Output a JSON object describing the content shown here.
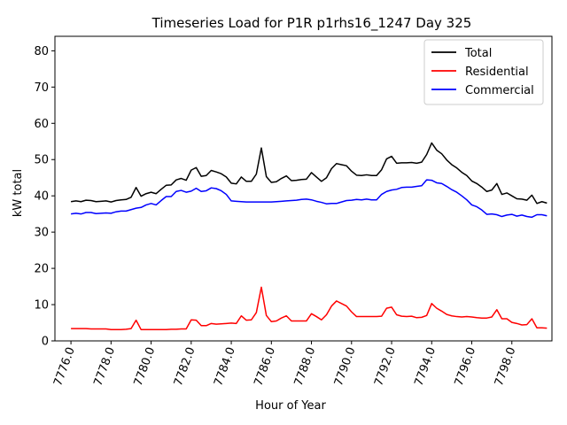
{
  "chart_data": {
    "type": "line",
    "title": "Timeseries Load for P1R p1rhs16_1247  Day 325",
    "xlabel": "Hour of Year",
    "ylabel": "kW total",
    "xlim": [
      7775.2,
      7800.0
    ],
    "ylim": [
      0,
      84
    ],
    "x_ticks": [
      7776.0,
      7778.0,
      7780.0,
      7782.0,
      7784.0,
      7786.0,
      7788.0,
      7790.0,
      7792.0,
      7794.0,
      7796.0,
      7798.0
    ],
    "x_tick_labels": [
      "7776.0",
      "7778.0",
      "7780.0",
      "7782.0",
      "7784.0",
      "7786.0",
      "7788.0",
      "7790.0",
      "7792.0",
      "7794.0",
      "7796.0",
      "7798.0"
    ],
    "y_ticks": [
      0,
      10,
      20,
      30,
      40,
      50,
      60,
      70,
      80
    ],
    "y_tick_labels": [
      "0",
      "10",
      "20",
      "30",
      "40",
      "50",
      "60",
      "70",
      "80"
    ],
    "legend_position": "top-right",
    "grid": false,
    "x_start": 7776.0,
    "x_step": 0.25,
    "series": [
      {
        "name": "Total",
        "color": "#000000",
        "values": [
          38.4,
          38.6,
          38.4,
          38.8,
          38.7,
          38.4,
          38.5,
          38.6,
          38.3,
          38.7,
          38.9,
          39.0,
          39.6,
          42.3,
          39.9,
          40.6,
          41.0,
          40.6,
          41.8,
          42.9,
          43.0,
          44.4,
          44.8,
          44.3,
          47.1,
          47.8,
          45.4,
          45.6,
          47.0,
          46.6,
          46.1,
          45.2,
          43.5,
          43.3,
          45.2,
          44.0,
          44.0,
          46.0,
          53.2,
          45.3,
          43.7,
          43.9,
          44.8,
          45.5,
          44.2,
          44.3,
          44.5,
          44.6,
          46.4,
          45.2,
          44.0,
          45.0,
          47.5,
          48.9,
          48.6,
          48.3,
          46.8,
          45.7,
          45.6,
          45.8,
          45.6,
          45.6,
          47.2,
          50.2,
          50.9,
          49.0,
          49.1,
          49.1,
          49.2,
          49.0,
          49.3,
          51.4,
          54.6,
          52.6,
          51.6,
          49.9,
          48.6,
          47.7,
          46.5,
          45.6,
          44.1,
          43.4,
          42.4,
          41.2,
          41.6,
          43.4,
          40.4,
          40.8,
          40.0,
          39.2,
          39.1,
          38.8,
          40.2,
          37.9,
          38.4,
          38.0
        ]
      },
      {
        "name": "Residential",
        "color": "#ff0000",
        "values": [
          3.4,
          3.4,
          3.4,
          3.4,
          3.3,
          3.3,
          3.3,
          3.3,
          3.1,
          3.1,
          3.1,
          3.2,
          3.4,
          5.7,
          3.1,
          3.1,
          3.1,
          3.1,
          3.1,
          3.1,
          3.2,
          3.2,
          3.3,
          3.3,
          5.8,
          5.7,
          4.2,
          4.2,
          4.8,
          4.6,
          4.7,
          4.8,
          4.9,
          4.8,
          6.9,
          5.7,
          5.8,
          7.8,
          14.8,
          7.0,
          5.3,
          5.5,
          6.3,
          6.9,
          5.5,
          5.5,
          5.5,
          5.5,
          7.5,
          6.7,
          5.8,
          7.2,
          9.6,
          11.0,
          10.3,
          9.6,
          8.0,
          6.7,
          6.7,
          6.7,
          6.7,
          6.7,
          6.8,
          9.0,
          9.3,
          7.2,
          6.8,
          6.7,
          6.8,
          6.4,
          6.5,
          7.0,
          10.3,
          9.0,
          8.2,
          7.3,
          6.9,
          6.7,
          6.6,
          6.7,
          6.6,
          6.4,
          6.3,
          6.3,
          6.6,
          8.6,
          6.1,
          6.1,
          5.1,
          4.8,
          4.4,
          4.5,
          6.1,
          3.6,
          3.6,
          3.5
        ]
      },
      {
        "name": "Commercial",
        "color": "#0000ff",
        "values": [
          35.0,
          35.2,
          35.0,
          35.4,
          35.4,
          35.1,
          35.2,
          35.3,
          35.2,
          35.6,
          35.8,
          35.8,
          36.2,
          36.6,
          36.8,
          37.5,
          37.9,
          37.5,
          38.7,
          39.8,
          39.8,
          41.2,
          41.5,
          41.0,
          41.3,
          42.1,
          41.2,
          41.4,
          42.2,
          42.0,
          41.4,
          40.4,
          38.6,
          38.5,
          38.4,
          38.3,
          38.3,
          38.3,
          38.3,
          38.3,
          38.3,
          38.4,
          38.5,
          38.6,
          38.7,
          38.8,
          39.0,
          39.1,
          38.9,
          38.5,
          38.2,
          37.8,
          37.9,
          37.9,
          38.3,
          38.7,
          38.8,
          39.0,
          38.9,
          39.1,
          38.9,
          38.9,
          40.4,
          41.2,
          41.6,
          41.8,
          42.3,
          42.4,
          42.4,
          42.6,
          42.8,
          44.4,
          44.3,
          43.6,
          43.4,
          42.6,
          41.7,
          41.0,
          40.0,
          38.9,
          37.5,
          37.0,
          36.1,
          34.9,
          35.0,
          34.8,
          34.3,
          34.7,
          34.9,
          34.4,
          34.7,
          34.3,
          34.1,
          34.8,
          34.8,
          34.5
        ]
      }
    ]
  }
}
